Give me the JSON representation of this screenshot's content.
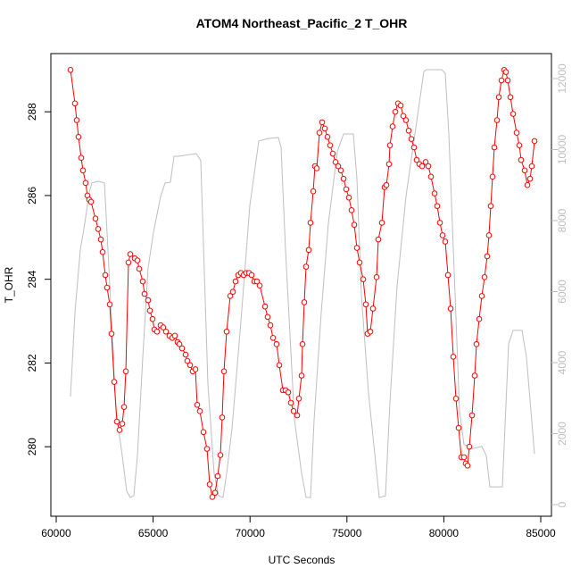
{
  "chart_data": {
    "type": "line",
    "title": "ATOM4 Northeast_Pacific_2 T_OHR",
    "x_label": "UTC Seconds",
    "y_label": "T_OHR",
    "xlim": [
      59724,
      85552
    ],
    "ylim": [
      278.34,
      289.39
    ],
    "y2lim": [
      -327,
      12704
    ],
    "xticks": [
      60000,
      65000,
      70000,
      75000,
      80000,
      85000
    ],
    "yticks": [
      280,
      282,
      284,
      286,
      288
    ],
    "y2ticks": [
      0,
      2000,
      4000,
      6000,
      8000,
      10000,
      12000
    ],
    "series": [
      {
        "color": "#ff0000",
        "marker": "open-circle",
        "x": [
          60737,
          60967,
          61059,
          61151,
          61289,
          61381,
          61519,
          61611,
          61703,
          61796,
          62026,
          62164,
          62302,
          62394,
          62532,
          62624,
          62762,
          62854,
          62993,
          63131,
          63269,
          63407,
          63499,
          63591,
          63729,
          63821,
          64052,
          64190,
          64282,
          64466,
          64558,
          64742,
          64834,
          64972,
          65064,
          65203,
          65387,
          65525,
          65663,
          65847,
          65985,
          66123,
          66261,
          66354,
          66492,
          66676,
          66768,
          66906,
          67044,
          67182,
          67274,
          67412,
          67597,
          67781,
          67919,
          68057,
          68195,
          68333,
          68471,
          68563,
          68656,
          68794,
          68978,
          69116,
          69254,
          69392,
          69530,
          69668,
          69807,
          69945,
          70083,
          70221,
          70359,
          70497,
          70773,
          70911,
          71050,
          71188,
          71372,
          71510,
          71694,
          71832,
          71970,
          72109,
          72247,
          72431,
          72523,
          72661,
          72707,
          72799,
          72891,
          73029,
          73121,
          73260,
          73352,
          73444,
          73582,
          73720,
          73858,
          73996,
          74134,
          74272,
          74411,
          74549,
          74687,
          74825,
          74963,
          75101,
          75239,
          75377,
          75515,
          75654,
          75838,
          75976,
          76067,
          76206,
          76344,
          76528,
          76620,
          76805,
          76943,
          77035,
          77173,
          77219,
          77357,
          77495,
          77633,
          77771,
          77909,
          78047,
          78186,
          78324,
          78462,
          78600,
          78738,
          78876,
          79060,
          79199,
          79337,
          79521,
          79659,
          79797,
          79935,
          80073,
          80212,
          80350,
          80488,
          80626,
          80764,
          80902,
          81040,
          81132,
          81224,
          81317,
          81455,
          81593,
          81685,
          81823,
          81961,
          82099,
          82237,
          82329,
          82421,
          82514,
          82606,
          82744,
          82836,
          82974,
          83112,
          83204,
          83296,
          83434,
          83572,
          83757,
          83895,
          83987,
          84171,
          84309,
          84447,
          84539,
          84677
        ],
        "values": [
          289.0,
          288.2,
          287.8,
          287.4,
          286.9,
          286.6,
          286.3,
          286.0,
          285.9,
          285.85,
          285.45,
          285.2,
          284.95,
          284.65,
          284.1,
          283.8,
          283.4,
          282.7,
          281.55,
          280.6,
          280.4,
          280.55,
          280.95,
          281.8,
          284.4,
          284.6,
          284.5,
          284.45,
          284.25,
          283.95,
          283.65,
          283.5,
          283.25,
          283.05,
          282.8,
          282.75,
          282.9,
          282.85,
          282.75,
          282.65,
          282.6,
          282.65,
          282.5,
          282.45,
          282.35,
          282.2,
          282.05,
          281.95,
          281.8,
          281.85,
          281.0,
          280.85,
          280.35,
          279.95,
          279.1,
          278.8,
          278.9,
          279.3,
          279.8,
          280.7,
          281.8,
          282.75,
          283.6,
          283.7,
          283.95,
          284.1,
          284.15,
          284.1,
          284.15,
          284.15,
          284.1,
          283.95,
          283.95,
          283.85,
          283.35,
          283.1,
          282.9,
          282.6,
          282.45,
          281.95,
          281.35,
          281.35,
          281.3,
          281.05,
          280.85,
          280.75,
          281.15,
          281.7,
          282.45,
          283.45,
          284.3,
          284.7,
          285.35,
          286.1,
          286.7,
          286.65,
          287.5,
          287.75,
          287.6,
          287.4,
          287.2,
          287.0,
          286.8,
          286.7,
          286.6,
          286.4,
          286.15,
          285.95,
          285.65,
          285.3,
          284.75,
          284.4,
          284.0,
          283.4,
          282.7,
          282.75,
          283.3,
          284.05,
          284.95,
          285.35,
          286.2,
          286.25,
          286.75,
          287.2,
          287.65,
          288.0,
          288.2,
          288.15,
          287.9,
          287.8,
          287.55,
          287.35,
          287.15,
          286.85,
          286.75,
          286.7,
          286.8,
          286.7,
          286.45,
          286.05,
          285.75,
          285.35,
          285.05,
          284.9,
          284.1,
          283.3,
          282.15,
          281.15,
          280.45,
          279.75,
          279.75,
          279.6,
          279.55,
          280.0,
          280.75,
          281.7,
          282.45,
          283.05,
          283.6,
          284.05,
          284.55,
          285.05,
          285.75,
          286.45,
          287.15,
          287.8,
          288.35,
          288.75,
          289.0,
          288.95,
          288.75,
          288.35,
          287.95,
          287.5,
          287.2,
          286.85,
          286.6,
          286.25,
          286.4,
          286.7,
          287.3
        ]
      },
      {
        "color": "#bebebe",
        "axis": "y2",
        "x": [
          60737,
          60967,
          61243,
          61473,
          61703,
          61842,
          62164,
          62486,
          62624,
          62854,
          63085,
          63407,
          63637,
          63821,
          64005,
          64190,
          64466,
          64742,
          65018,
          65387,
          65617,
          65893,
          66077,
          66307,
          67228,
          67458,
          67827,
          68149,
          68379,
          68609,
          68794,
          69070,
          69530,
          69991,
          70451,
          70911,
          71464,
          71602,
          71832,
          72293,
          72661,
          72891,
          73121,
          73306,
          73674,
          74042,
          74503,
          74825,
          75331,
          75515,
          75746,
          76114,
          76666,
          76989,
          77219,
          77587,
          78047,
          78508,
          78968,
          79106,
          79889,
          80073,
          80258,
          80580,
          80810,
          81040,
          81271,
          81501,
          81961,
          82191,
          82375,
          82652,
          83020,
          83342,
          83572,
          84033,
          84263,
          84493,
          84677
        ],
        "values": [
          3040,
          5410,
          7170,
          7920,
          8800,
          9060,
          9110,
          9060,
          7670,
          5160,
          2640,
          1380,
          380,
          200,
          250,
          1380,
          4150,
          6670,
          7670,
          8680,
          9060,
          9080,
          9810,
          9810,
          9890,
          9690,
          3400,
          880,
          250,
          200,
          880,
          2140,
          5160,
          8430,
          10240,
          10310,
          10340,
          10060,
          7170,
          2390,
          880,
          200,
          200,
          2390,
          5410,
          7920,
          9940,
          10440,
          10440,
          9180,
          5910,
          3140,
          200,
          250,
          2890,
          6160,
          8680,
          10440,
          12200,
          12250,
          12250,
          12150,
          10440,
          5910,
          2640,
          1690,
          1640,
          1580,
          1640,
          1380,
          500,
          500,
          500,
          4530,
          4910,
          4910,
          4150,
          2640,
          1430
        ]
      }
    ]
  }
}
